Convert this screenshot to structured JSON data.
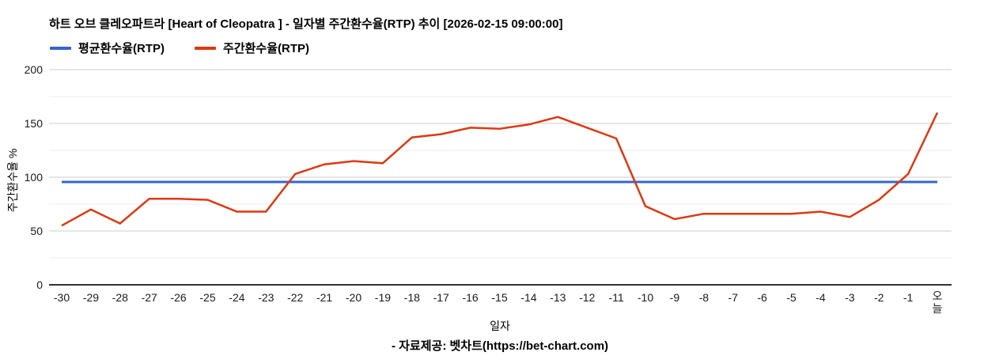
{
  "header": {
    "title": "하트 오브 클레오파트라 [Heart of Cleopatra ] - 일자별 주간환수율(RTP) 추이 [2026-02-15 09:00:00]"
  },
  "legend": {
    "items": [
      {
        "label": "평균환수율(RTP)",
        "color": "#3366cc"
      },
      {
        "label": "주간환수율(RTP)",
        "color": "#dc3912"
      }
    ]
  },
  "footer": {
    "source": "- 자료제공: 벳차트(https://bet-chart.com)"
  },
  "chart_data": {
    "type": "line",
    "title": "하트 오브 클레오파트라 [Heart of Cleopatra ] - 일자별 주간환수율(RTP) 추이 [2026-02-15 09:00:00]",
    "xlabel": "일자",
    "ylabel": "주간환수율 %",
    "ylim": [
      0,
      200
    ],
    "yticks": [
      0,
      50,
      100,
      150,
      200
    ],
    "yticks_minor": [
      25,
      75,
      125,
      175
    ],
    "grid": true,
    "legend_position": "top-left",
    "categories": [
      "-30",
      "-29",
      "-28",
      "-27",
      "-26",
      "-25",
      "-24",
      "-23",
      "-22",
      "-21",
      "-20",
      "-19",
      "-18",
      "-17",
      "-16",
      "-15",
      "-14",
      "-13",
      "-12",
      "-11",
      "-10",
      "-9",
      "-8",
      "-7",
      "-6",
      "-5",
      "-4",
      "-3",
      "-2",
      "-1",
      "오늘"
    ],
    "series": [
      {
        "name": "평균환수율(RTP)",
        "color": "#3366cc",
        "values": [
          95.6,
          95.6,
          95.6,
          95.6,
          95.6,
          95.6,
          95.6,
          95.6,
          95.6,
          95.6,
          95.6,
          95.6,
          95.6,
          95.6,
          95.6,
          95.6,
          95.6,
          95.6,
          95.6,
          95.6,
          95.6,
          95.6,
          95.6,
          95.6,
          95.6,
          95.6,
          95.6,
          95.6,
          95.6,
          95.6,
          95.6
        ]
      },
      {
        "name": "주간환수율(RTP)",
        "color": "#dc3912",
        "values": [
          55,
          70,
          57,
          80,
          80,
          79,
          68,
          68,
          103,
          112,
          115,
          113,
          137,
          140,
          146,
          145,
          149,
          156,
          146,
          136,
          73,
          61,
          66,
          66,
          66,
          66,
          68,
          63,
          79,
          103,
          160
        ]
      }
    ],
    "colors": {
      "grid_major": "#cccccc",
      "grid_minor": "#ececec",
      "axis": "#333333",
      "tick_text": "#1a1a1a"
    }
  }
}
